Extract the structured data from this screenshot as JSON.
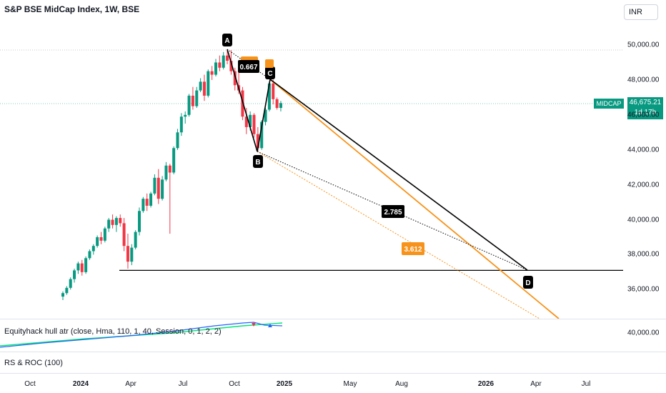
{
  "header": {
    "title": "S&P BSE MidCap Index, 1W, BSE",
    "currency": "INR"
  },
  "price": {
    "symbol": "MIDCAP",
    "last": "46,675.21",
    "countdown": "1d 17h"
  },
  "indicators": {
    "hull": "Equityhack hull atr (close, Hma, 110, 1, 40, Session, 0, 1, 2, 2)",
    "hull_scale": "40,000.00",
    "rs_roc": "RS & ROC (100)"
  },
  "colors": {
    "up": "#089981",
    "down": "#f23645",
    "pattern": "#000000",
    "target": "#f7931a"
  },
  "chart_data": {
    "type": "candlestick",
    "title": "S&P BSE MidCap Index, 1W, BSE",
    "y_ticks": [
      50000,
      48000,
      46000,
      44000,
      42000,
      40000,
      38000,
      36000
    ],
    "y_tick_labels": [
      "50,000.00",
      "48,000.00",
      "46,000.00",
      "44,000.00",
      "42,000.00",
      "40,000.00",
      "38,000.00",
      "36,000.00"
    ],
    "x_ticks": [
      "Oct",
      "2024",
      "Apr",
      "Jul",
      "Oct",
      "2025",
      "May",
      "Aug",
      "2026",
      "Apr",
      "Jul"
    ],
    "x_ticks_bold": [
      "2024",
      "2025",
      "2026"
    ],
    "last_price": 46675.21,
    "harmonic_points": [
      {
        "label": "A",
        "price": 49700
      },
      {
        "label": "B",
        "price": 43900
      },
      {
        "label": "C",
        "price": 47900
      },
      {
        "label": "D",
        "price": 37100
      }
    ],
    "ratios": [
      {
        "label": "0.667",
        "kind": "retracement"
      },
      {
        "label": "2.785",
        "kind": "projection"
      },
      {
        "label": "3.612",
        "kind": "target"
      }
    ],
    "horizontal_level": 37100
  }
}
